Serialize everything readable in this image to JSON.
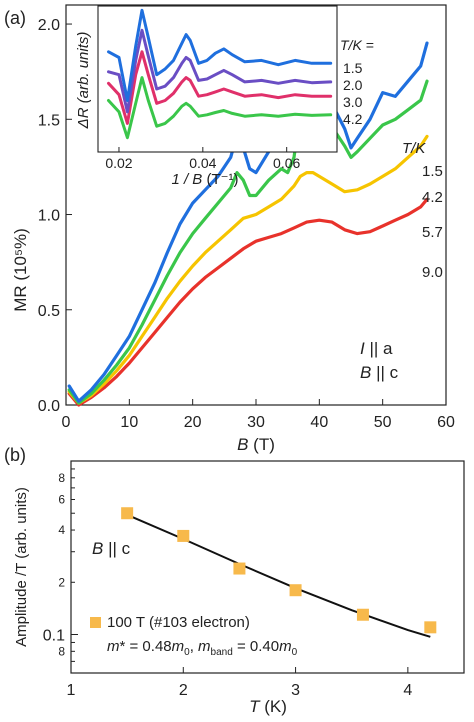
{
  "colors": {
    "blue": "#1f6fde",
    "green": "#3ac64a",
    "yellow": "#f6c400",
    "red": "#e8322b",
    "purple": "#6a4ec4",
    "magenta": "#e0306a",
    "marker": "#f7b94b"
  },
  "chart_data": [
    {
      "panel": "(a)",
      "type": "line",
      "xlabel_main": "B",
      "xlabel_unit": "(T)",
      "ylabel": "MR (10⁵%)",
      "xlim": [
        0,
        60
      ],
      "ylim": [
        0,
        2.1
      ],
      "xticks": [
        0,
        10,
        20,
        30,
        40,
        50,
        60
      ],
      "yticks": [
        0.0,
        0.5,
        1.0,
        1.5,
        2.0
      ],
      "xtick_labels": [
        "0",
        "10",
        "20",
        "30",
        "40",
        "50",
        "60"
      ],
      "ytick_labels": [
        "0.0",
        "0.5",
        "1.0",
        "1.5",
        "2.0"
      ],
      "legend_title": "T/K",
      "annotations": [
        "I || a",
        "B || c"
      ],
      "series": [
        {
          "name": "1.5",
          "color": "#1f6fde",
          "x": [
            0.5,
            2,
            4,
            6,
            8,
            10,
            12,
            14,
            16,
            18,
            20,
            22,
            24,
            26,
            27,
            28,
            29,
            30,
            32,
            34,
            35,
            36,
            37,
            38,
            39,
            40,
            42,
            44,
            45,
            46,
            48,
            50,
            52,
            54,
            56,
            57
          ],
          "y": [
            0.1,
            0.02,
            0.08,
            0.16,
            0.26,
            0.36,
            0.5,
            0.64,
            0.8,
            0.95,
            1.06,
            1.13,
            1.2,
            1.3,
            1.42,
            1.35,
            1.24,
            1.22,
            1.33,
            1.43,
            1.4,
            1.5,
            1.78,
            1.95,
            1.96,
            1.88,
            1.58,
            1.45,
            1.35,
            1.4,
            1.5,
            1.64,
            1.62,
            1.7,
            1.78,
            1.9
          ]
        },
        {
          "name": "4.2",
          "color": "#3ac64a",
          "x": [
            0.5,
            2,
            4,
            6,
            8,
            10,
            12,
            14,
            16,
            18,
            20,
            22,
            24,
            26,
            27,
            28,
            29,
            30,
            32,
            34,
            35,
            36,
            37,
            38,
            39,
            40,
            42,
            44,
            45,
            46,
            48,
            50,
            52,
            54,
            56,
            57
          ],
          "y": [
            0.08,
            0.01,
            0.06,
            0.13,
            0.21,
            0.3,
            0.42,
            0.55,
            0.68,
            0.8,
            0.9,
            0.98,
            1.06,
            1.14,
            1.22,
            1.18,
            1.1,
            1.1,
            1.18,
            1.24,
            1.22,
            1.3,
            1.54,
            1.68,
            1.7,
            1.65,
            1.46,
            1.36,
            1.3,
            1.33,
            1.4,
            1.47,
            1.5,
            1.55,
            1.6,
            1.7
          ]
        },
        {
          "name": "5.7",
          "color": "#f6c400",
          "x": [
            0.5,
            2,
            4,
            6,
            8,
            10,
            12,
            14,
            16,
            18,
            20,
            22,
            24,
            26,
            28,
            30,
            32,
            34,
            36,
            37,
            38,
            39,
            40,
            42,
            44,
            46,
            48,
            50,
            52,
            54,
            56,
            57
          ],
          "y": [
            0.07,
            0.01,
            0.05,
            0.11,
            0.18,
            0.26,
            0.36,
            0.46,
            0.56,
            0.65,
            0.73,
            0.8,
            0.86,
            0.92,
            0.98,
            1.0,
            1.04,
            1.08,
            1.15,
            1.2,
            1.22,
            1.22,
            1.2,
            1.16,
            1.12,
            1.13,
            1.16,
            1.2,
            1.24,
            1.3,
            1.36,
            1.41
          ]
        },
        {
          "name": "9.0",
          "color": "#e8322b",
          "x": [
            0.5,
            2,
            4,
            6,
            8,
            10,
            12,
            14,
            16,
            18,
            20,
            22,
            24,
            26,
            28,
            30,
            32,
            34,
            36,
            38,
            40,
            42,
            44,
            46,
            48,
            50,
            52,
            54,
            56,
            57
          ],
          "y": [
            0.06,
            0.0,
            0.04,
            0.09,
            0.15,
            0.22,
            0.3,
            0.38,
            0.46,
            0.54,
            0.61,
            0.67,
            0.72,
            0.77,
            0.82,
            0.86,
            0.88,
            0.9,
            0.93,
            0.96,
            0.97,
            0.96,
            0.92,
            0.9,
            0.91,
            0.94,
            0.97,
            1.0,
            1.04,
            1.08
          ]
        }
      ],
      "inset": {
        "type": "line",
        "xlabel_main": "1 / B",
        "xlabel_unit": "(T⁻¹)",
        "ylabel": "ΔR (arb. units)",
        "xlim": [
          0.015,
          0.072
        ],
        "ylim": [
          -0.5,
          4.6
        ],
        "xticks": [
          0.02,
          0.04,
          0.06
        ],
        "xtick_labels": [
          "0.02",
          "0.04",
          "0.06"
        ],
        "legend_title": "T/K =",
        "series": [
          {
            "name": "1.5",
            "color": "#1f6fde",
            "x": [
              0.0175,
              0.02,
              0.022,
              0.024,
              0.0255,
              0.027,
              0.029,
              0.031,
              0.033,
              0.035,
              0.036,
              0.037,
              0.039,
              0.041,
              0.043,
              0.045,
              0.047,
              0.05,
              0.054,
              0.058,
              0.062,
              0.066,
              0.0705
            ],
            "y": [
              3.0,
              2.8,
              1.3,
              3.2,
              4.45,
              3.5,
              2.2,
              2.4,
              2.7,
              3.3,
              3.6,
              3.4,
              2.6,
              2.7,
              2.95,
              3.1,
              2.9,
              2.65,
              2.7,
              2.55,
              2.7,
              2.6,
              2.6
            ]
          },
          {
            "name": "2.0",
            "color": "#6a4ec4",
            "x": [
              0.0175,
              0.02,
              0.022,
              0.024,
              0.0255,
              0.027,
              0.029,
              0.031,
              0.033,
              0.035,
              0.036,
              0.037,
              0.039,
              0.041,
              0.043,
              0.045,
              0.047,
              0.05,
              0.054,
              0.058,
              0.062,
              0.066,
              0.0705
            ],
            "y": [
              2.3,
              2.2,
              0.9,
              2.7,
              3.75,
              2.85,
              1.7,
              1.8,
              2.1,
              2.6,
              2.8,
              2.7,
              2.0,
              2.05,
              2.2,
              2.35,
              2.2,
              1.95,
              2.0,
              1.9,
              2.0,
              1.92,
              1.95
            ]
          },
          {
            "name": "3.0",
            "color": "#e0306a",
            "x": [
              0.0175,
              0.02,
              0.022,
              0.024,
              0.0255,
              0.027,
              0.029,
              0.031,
              0.033,
              0.035,
              0.036,
              0.037,
              0.039,
              0.041,
              0.043,
              0.045,
              0.047,
              0.05,
              0.054,
              0.058,
              0.062,
              0.066,
              0.0705
            ],
            "y": [
              1.9,
              1.5,
              0.5,
              2.2,
              3.0,
              2.2,
              1.2,
              1.3,
              1.55,
              1.95,
              2.1,
              2.0,
              1.45,
              1.5,
              1.6,
              1.7,
              1.6,
              1.45,
              1.5,
              1.4,
              1.5,
              1.45,
              1.45
            ]
          },
          {
            "name": "4.2",
            "color": "#3ac64a",
            "x": [
              0.0175,
              0.02,
              0.022,
              0.024,
              0.0255,
              0.027,
              0.029,
              0.031,
              0.033,
              0.035,
              0.036,
              0.037,
              0.039,
              0.041,
              0.043,
              0.045,
              0.047,
              0.05,
              0.054,
              0.058,
              0.062,
              0.066,
              0.0705
            ],
            "y": [
              1.3,
              0.9,
              0.0,
              1.2,
              2.1,
              1.3,
              0.4,
              0.5,
              0.75,
              1.1,
              1.2,
              1.1,
              0.75,
              0.8,
              0.88,
              0.95,
              0.85,
              0.75,
              0.8,
              0.75,
              0.82,
              0.78,
              0.8
            ]
          }
        ]
      }
    },
    {
      "panel": "(b)",
      "type": "scatter",
      "xlabel_main": "T",
      "xlabel_unit": "(K)",
      "ylabel": "Amplitude /T  (arb. units)",
      "yscale": "log",
      "xlim": [
        1,
        4.5
      ],
      "ylim": [
        0.06,
        1.0
      ],
      "xticks": [
        1,
        2,
        3,
        4
      ],
      "xtick_labels": [
        "1",
        "2",
        "3",
        "4"
      ],
      "ytick_major": [
        0.1
      ],
      "ytick_minor": [
        0.07,
        0.08,
        0.09,
        0.2,
        0.3,
        0.4,
        0.5,
        0.6,
        0.7,
        0.8,
        0.9
      ],
      "ytick_labels": {
        "0.1": "0.1",
        "0.2": "2",
        "0.4": "4",
        "0.6": "6",
        "0.8": "8",
        "0.08": "8"
      },
      "annotation": "B || c",
      "legend": "100 T (#103 electron)",
      "fit_label": "m* = 0.48m₀, m_band = 0.40m₀",
      "points": {
        "x": [
          1.5,
          2.0,
          2.5,
          3.0,
          3.6,
          4.2
        ],
        "y": [
          0.5,
          0.37,
          0.24,
          0.18,
          0.13,
          0.11
        ]
      },
      "fit": {
        "x": [
          1.5,
          2.0,
          2.5,
          3.0,
          3.5,
          4.0,
          4.2
        ],
        "y": [
          0.49,
          0.355,
          0.255,
          0.185,
          0.138,
          0.106,
          0.097
        ]
      }
    }
  ],
  "labels": {
    "a_legend_title": "T/K",
    "a_legend_items": [
      "1.5",
      "4.2",
      "5.7",
      "9.0"
    ],
    "a_ann1_main": "I",
    "a_ann1_rest": "|| a",
    "a_ann2_main": "B",
    "a_ann2_rest": "|| c",
    "inset_legend_title": "T/K =",
    "inset_legend_items": [
      "1.5",
      "2.0",
      "3.0",
      "4.2"
    ],
    "b_ann_main": "B",
    "b_ann_rest": "|| c",
    "b_legend": "100 T (#103 electron)",
    "b_fit_m1": "m",
    "b_fit_m2": "* = 0.48",
    "b_fit_m3": "m",
    "b_fit_m4": "0",
    "b_fit_m5": ", ",
    "b_fit_m6": "m",
    "b_fit_m7": "band",
    "b_fit_m8": " = 0.40",
    "b_fit_m9": "m",
    "b_fit_m10": "0"
  }
}
